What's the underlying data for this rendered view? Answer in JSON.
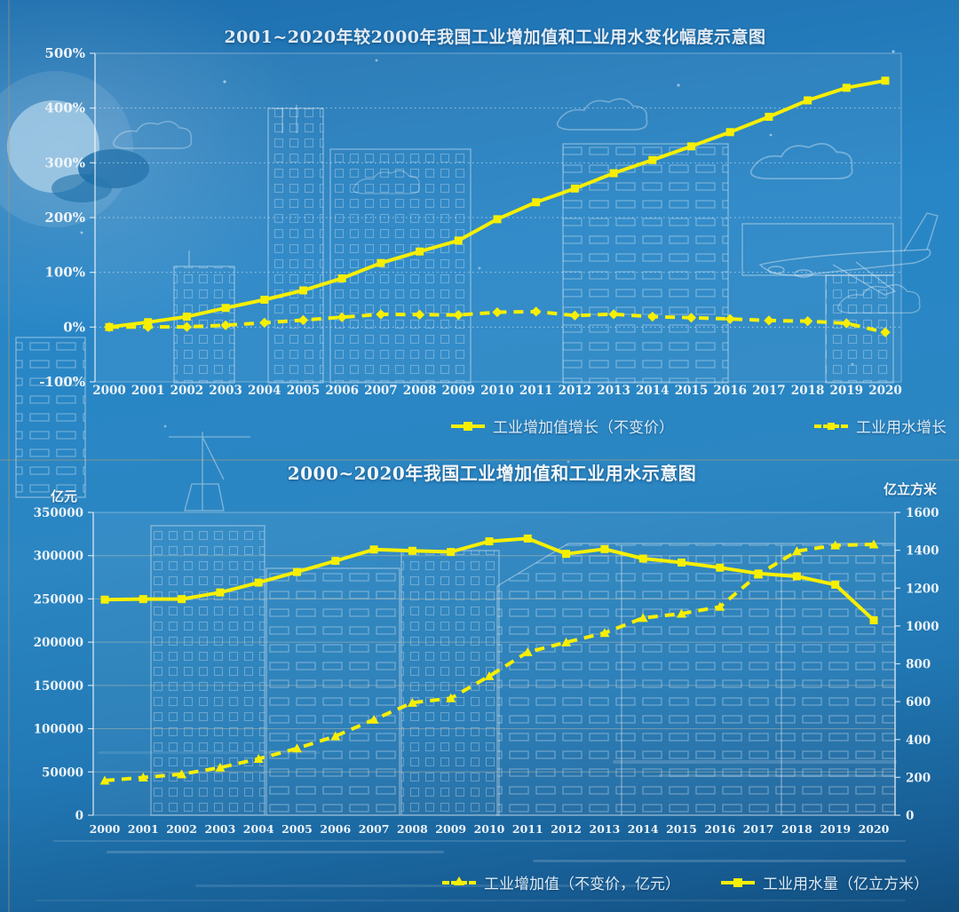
{
  "colors": {
    "line_yellow": "#f7ef00",
    "text": "#e9f1f8",
    "background_blue": "#2280bf"
  },
  "chart_data": [
    {
      "type": "line",
      "title": "2001~2020年较2000年我国工业增加值和工业用水变化幅度示意图",
      "xlabel": "",
      "ylabel": "",
      "grid": true,
      "legend_position": "bottom",
      "x": [
        2000,
        2001,
        2002,
        2003,
        2004,
        2005,
        2006,
        2007,
        2008,
        2009,
        2010,
        2011,
        2012,
        2013,
        2014,
        2015,
        2016,
        2017,
        2018,
        2019,
        2020
      ],
      "axes": [
        {
          "side": "left",
          "lim": [
            -100,
            500
          ],
          "ticks": [
            500,
            400,
            300,
            200,
            100,
            0,
            -100
          ],
          "labels": [
            "500%",
            "400%",
            "300%",
            "200%",
            "100%",
            "0%",
            "-100%"
          ]
        }
      ],
      "series": [
        {
          "name": "工业增加值增长（不变价）",
          "axis": "left",
          "style": "solid",
          "marker": "square",
          "values": [
            0,
            9,
            19,
            35,
            50,
            67,
            89,
            117,
            138,
            158,
            197,
            228,
            253,
            281,
            305,
            330,
            356,
            384,
            414,
            437,
            450
          ]
        },
        {
          "name": "工业用水增长",
          "axis": "left",
          "style": "dashed",
          "marker": "diamond",
          "values": [
            0,
            0.2,
            0.3,
            3.4,
            7.9,
            12.8,
            18,
            23.3,
            22.7,
            22.1,
            27.1,
            28.3,
            21.2,
            23.5,
            19.1,
            17.2,
            14.8,
            12.1,
            10.8,
            6.9,
            -9.5
          ]
        }
      ]
    },
    {
      "type": "line",
      "title": "2000~2020年我国工业增加值和工业用水示意图",
      "xlabel": "",
      "grid": true,
      "legend_position": "bottom",
      "x": [
        2000,
        2001,
        2002,
        2003,
        2004,
        2005,
        2006,
        2007,
        2008,
        2009,
        2010,
        2011,
        2012,
        2013,
        2014,
        2015,
        2016,
        2017,
        2018,
        2019,
        2020
      ],
      "axes": [
        {
          "side": "left",
          "label": "亿元",
          "lim": [
            0,
            350000
          ],
          "ticks": [
            350000,
            300000,
            250000,
            200000,
            150000,
            100000,
            50000,
            0
          ],
          "labels": [
            "350000",
            "300000",
            "250000",
            "200000",
            "150000",
            "100000",
            "50000",
            "0"
          ]
        },
        {
          "side": "right",
          "label": "亿立方米",
          "lim": [
            0,
            1600
          ],
          "ticks": [
            1600,
            1400,
            1200,
            1000,
            800,
            600,
            400,
            200,
            0
          ],
          "labels": [
            "1600",
            "1400",
            "1200",
            "1000",
            "800",
            "600",
            "400",
            "200",
            "0"
          ]
        }
      ],
      "series": [
        {
          "name": "工业增加值（不变价，亿元）",
          "axis": "left",
          "style": "dashed",
          "marker": "triangle",
          "values": [
            40000,
            43600,
            47400,
            55000,
            65200,
            77200,
            91300,
            110500,
            130000,
            135200,
            160700,
            188500,
            199700,
            210700,
            228000,
            233000,
            240900,
            278300,
            305200,
            311900,
            313100
          ]
        },
        {
          "name": "工业用水量（亿立方米）",
          "axis": "right",
          "style": "solid",
          "marker": "square",
          "values": [
            1139,
            1142,
            1142,
            1177,
            1229,
            1285,
            1344,
            1404,
            1397,
            1391,
            1447,
            1462,
            1381,
            1406,
            1356,
            1335,
            1308,
            1277,
            1262,
            1218,
            1030
          ]
        }
      ]
    }
  ]
}
